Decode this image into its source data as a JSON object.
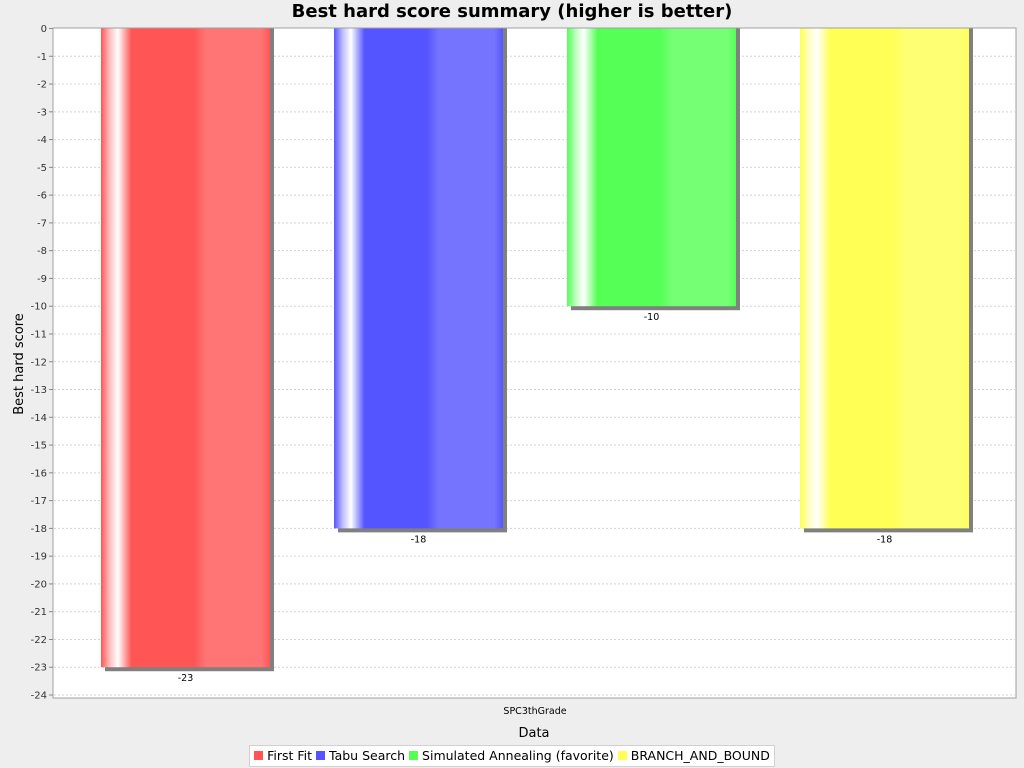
{
  "chart_data": {
    "type": "bar",
    "title": "Best hard score summary (higher is better)",
    "xlabel": "Data",
    "ylabel": "Best hard score",
    "categories": [
      "SPC3thGrade"
    ],
    "ylim": [
      -24,
      0
    ],
    "yticks": [
      0,
      -1,
      -2,
      -3,
      -4,
      -5,
      -6,
      -7,
      -8,
      -9,
      -10,
      -11,
      -12,
      -13,
      -14,
      -15,
      -16,
      -17,
      -18,
      -19,
      -20,
      -21,
      -22,
      -23,
      -24
    ],
    "grid": true,
    "legend_position": "bottom",
    "series": [
      {
        "name": "First Fit",
        "values": [
          -23
        ],
        "color": "#ff5555"
      },
      {
        "name": "Tabu Search",
        "values": [
          -18
        ],
        "color": "#5555ff"
      },
      {
        "name": "Simulated Annealing (favorite)",
        "values": [
          -10
        ],
        "color": "#55ff55"
      },
      {
        "name": "BRANCH_AND_BOUND",
        "values": [
          -18
        ],
        "color": "#ffff55"
      }
    ]
  }
}
